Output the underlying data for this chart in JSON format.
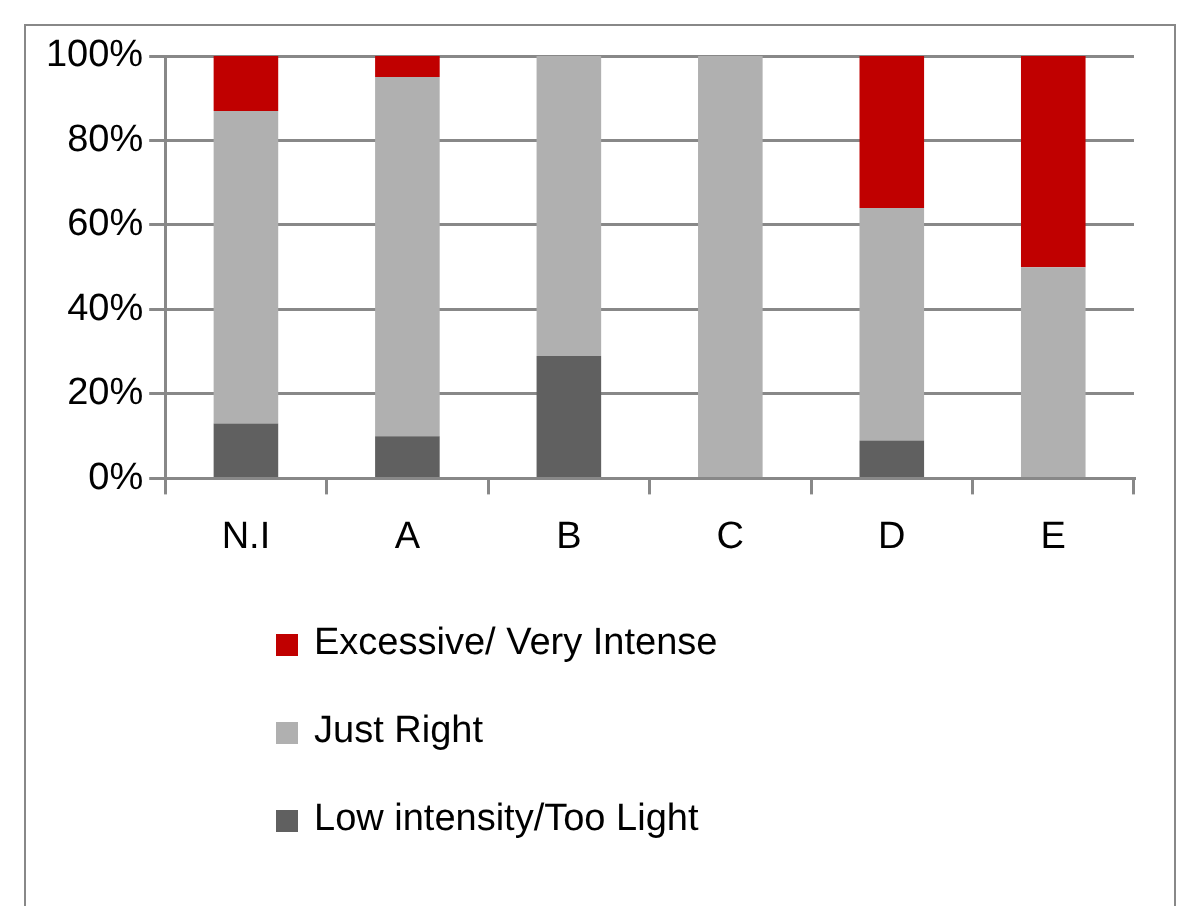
{
  "chart_data": {
    "type": "bar",
    "stacked": true,
    "categories": [
      "N.I",
      "A",
      "B",
      "C",
      "D",
      "E"
    ],
    "series": [
      {
        "name": "Low intensity/Too Light",
        "color": "#606060",
        "values": [
          13,
          10,
          29,
          0,
          9,
          0
        ]
      },
      {
        "name": "Just Right",
        "color": "#b0b0b0",
        "values": [
          74,
          85,
          71,
          100,
          55,
          50
        ]
      },
      {
        "name": "Excessive/ Very Intense",
        "color": "#c00000",
        "values": [
          13,
          5,
          0,
          0,
          36,
          50
        ]
      }
    ],
    "ylim": [
      0,
      100
    ],
    "yticks": [
      {
        "value": 0,
        "label": "0%"
      },
      {
        "value": 20,
        "label": "20%"
      },
      {
        "value": 40,
        "label": "40%"
      },
      {
        "value": 60,
        "label": "60%"
      },
      {
        "value": 80,
        "label": "80%"
      },
      {
        "value": 100,
        "label": "100%"
      }
    ],
    "grid": "y",
    "legend": "bottom"
  }
}
